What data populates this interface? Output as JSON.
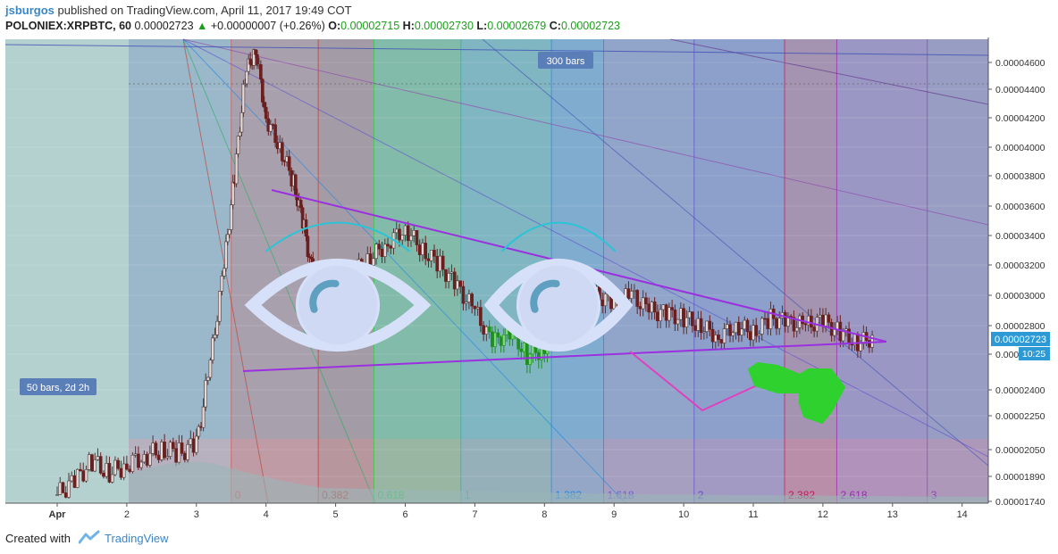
{
  "header": {
    "user": "jsburgos",
    "published": "published on TradingView.com, April 11, 2017 19:49 COT",
    "symbol": "POLONIEX:XRPBTC, 60",
    "last": "0.00002723",
    "change": "+0.00000007 (+0.26%)",
    "o_label": "O:",
    "o_value": "0.00002715",
    "h_label": "H:",
    "h_value": "0.00002730",
    "l_label": "L:",
    "l_value": "0.00002679",
    "c_label": "C:",
    "c_value": "0.00002723"
  },
  "footer": {
    "created_with": "Created with",
    "brand": "TradingView"
  },
  "chart_data": {
    "type": "candlestick",
    "x_ticks": [
      "Apr",
      "2",
      "3",
      "4",
      "5",
      "6",
      "7",
      "8",
      "9",
      "10",
      "11",
      "12",
      "13",
      "14"
    ],
    "y_ticks": [
      "0.00004600",
      "0.00004400",
      "0.00004200",
      "0.00004000",
      "0.00003800",
      "0.00003600",
      "0.00003400",
      "0.00003200",
      "0.00003000",
      "0.00002800",
      "0.00002600",
      "0.00002400",
      "0.00002250",
      "0.00002050",
      "0.00001890",
      "0.00001740"
    ],
    "y_tick_values": [
      4.6e-05,
      4.4e-05,
      4.2e-05,
      4e-05,
      3.8e-05,
      3.6e-05,
      3.4e-05,
      3.2e-05,
      3e-05,
      2.8e-05,
      2.6e-05,
      2.4e-05,
      2.25e-05,
      2.05e-05,
      1.89e-05,
      1.74e-05
    ],
    "last_price_label": "0.00002723",
    "countdown_label": "10:25",
    "annotations": {
      "bars_300": "300 bars",
      "bars_50": "50 bars, 2d 2h"
    },
    "fib_time_labels": [
      "0",
      "0.382",
      "0.618",
      "1",
      "1.382",
      "1.618",
      "2",
      "2.382",
      "2.618",
      "3"
    ],
    "fib_time_days": [
      2.5,
      3.75,
      4.55,
      5.8,
      7.1,
      7.85,
      9.15,
      10.45,
      11.2,
      12.5
    ],
    "fib_colors": [
      "#d9534f",
      "#c0392b",
      "#2ecc40",
      "#20b2aa",
      "#1e88e5",
      "#6c63c8",
      "#5b4fd0",
      "#c2185b",
      "#9c27b0",
      "#8e44ad"
    ],
    "close_series": {
      "days": [
        0,
        0.25,
        0.5,
        0.75,
        1,
        1.25,
        1.5,
        1.75,
        2,
        2.2,
        2.4,
        2.55,
        2.7,
        2.85,
        3,
        3.2,
        3.4,
        3.55,
        3.7,
        3.85,
        4,
        4.25,
        4.5,
        4.75,
        5,
        5.25,
        5.5,
        5.75,
        6,
        6.25,
        6.5,
        6.75,
        7,
        7.25,
        7.5,
        7.75,
        8,
        8.25,
        8.5,
        8.75,
        9,
        9.25,
        9.5,
        9.75,
        10,
        10.25,
        10.5,
        10.75,
        11,
        11.25,
        11.5,
        11.75
      ],
      "values": [
        1.78e-05,
        1.86e-05,
        1.98e-05,
        1.91e-05,
        1.96e-05,
        2.01e-05,
        2.05e-05,
        2.03e-05,
        2.08e-05,
        2.55e-05,
        3.2e-05,
        3.8e-05,
        4.5e-05,
        4.7e-05,
        4.2e-05,
        4e-05,
        3.75e-05,
        3.45e-05,
        3.05e-05,
        2.7e-05,
        2.85e-05,
        3.15e-05,
        3.25e-05,
        3.35e-05,
        3.45e-05,
        3.3e-05,
        3.2e-05,
        3.05e-05,
        2.9e-05,
        2.68e-05,
        2.76e-05,
        2.6e-05,
        2.64e-05,
        3.15e-05,
        3.05e-05,
        3e-05,
        2.95e-05,
        3e-05,
        2.9e-05,
        2.88e-05,
        2.85e-05,
        2.8e-05,
        2.72e-05,
        2.8e-05,
        2.75e-05,
        2.85e-05,
        2.82e-05,
        2.8e-05,
        2.83e-05,
        2.75e-05,
        2.68e-05,
        2.72e-05
      ]
    }
  }
}
